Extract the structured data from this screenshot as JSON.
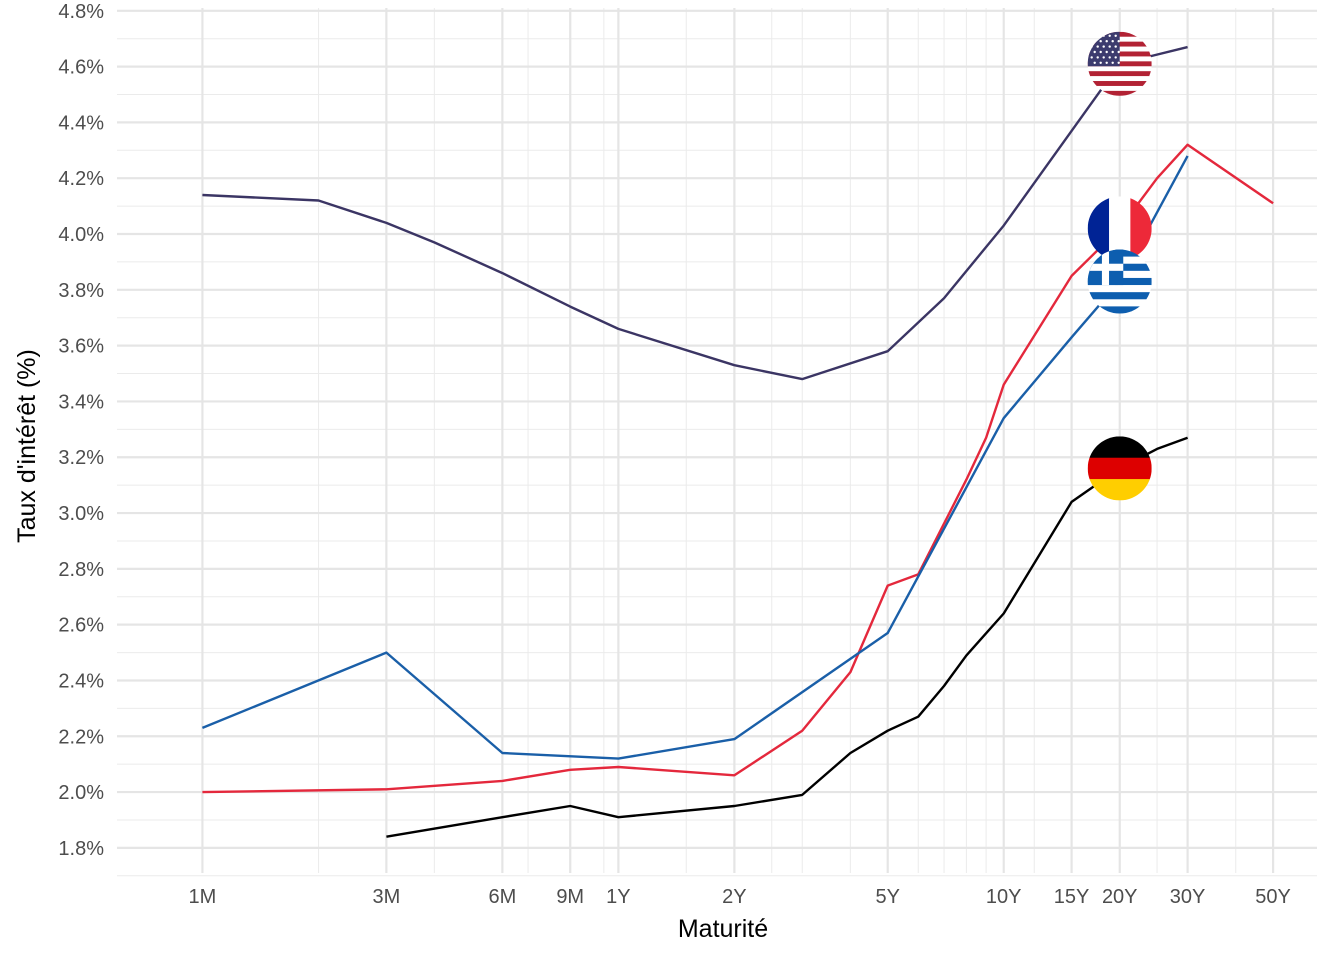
{
  "chart_data": {
    "type": "line",
    "xlabel": "Maturité",
    "ylabel": "Taux d'intérêt (%)",
    "x_scale": "log",
    "x_unit": "years",
    "xlim": [
      0.05,
      65
    ],
    "ylim": [
      1.71,
      4.81
    ],
    "x_ticks": [
      {
        "value": 0.0833,
        "label": "1M"
      },
      {
        "value": 0.25,
        "label": "3M"
      },
      {
        "value": 0.5,
        "label": "6M"
      },
      {
        "value": 0.75,
        "label": "9M"
      },
      {
        "value": 1,
        "label": "1Y"
      },
      {
        "value": 2,
        "label": "2Y"
      },
      {
        "value": 5,
        "label": "5Y"
      },
      {
        "value": 10,
        "label": "10Y"
      },
      {
        "value": 15,
        "label": "15Y"
      },
      {
        "value": 20,
        "label": "20Y"
      },
      {
        "value": 30,
        "label": "30Y"
      },
      {
        "value": 50,
        "label": "50Y"
      }
    ],
    "y_ticks": [
      {
        "value": 1.8,
        "label": "1.8%"
      },
      {
        "value": 2.0,
        "label": "2.0%"
      },
      {
        "value": 2.2,
        "label": "2.2%"
      },
      {
        "value": 2.4,
        "label": "2.4%"
      },
      {
        "value": 2.6,
        "label": "2.6%"
      },
      {
        "value": 2.8,
        "label": "2.8%"
      },
      {
        "value": 3.0,
        "label": "3.0%"
      },
      {
        "value": 3.2,
        "label": "3.2%"
      },
      {
        "value": 3.4,
        "label": "3.4%"
      },
      {
        "value": 3.6,
        "label": "3.6%"
      },
      {
        "value": 3.8,
        "label": "3.8%"
      },
      {
        "value": 4.0,
        "label": "4.0%"
      },
      {
        "value": 4.2,
        "label": "4.2%"
      },
      {
        "value": 4.4,
        "label": "4.4%"
      },
      {
        "value": 4.6,
        "label": "4.6%"
      },
      {
        "value": 4.8,
        "label": "4.8%"
      }
    ],
    "major_grid_x": [
      0.0833,
      0.25,
      0.5,
      0.75,
      1,
      2,
      5,
      10,
      15,
      20,
      30,
      50
    ],
    "minor_grid_x": [
      0.1667,
      0.333,
      0.583,
      0.917,
      1.5,
      2.5,
      3,
      4,
      6,
      7,
      8,
      9,
      12,
      25,
      40
    ],
    "minor_grid_y": [
      1.7,
      1.9,
      2.1,
      2.3,
      2.5,
      2.7,
      2.9,
      3.1,
      3.3,
      3.5,
      3.7,
      3.9,
      4.1,
      4.3,
      4.5,
      4.7
    ],
    "grid": true,
    "legend": "none (flag markers at the 20Y point)",
    "flag_at_x": 20,
    "series": [
      {
        "flag": "united-states",
        "color": "#3b3564",
        "points": [
          [
            0.0833,
            4.14
          ],
          [
            0.1667,
            4.12
          ],
          [
            0.25,
            4.04
          ],
          [
            0.333,
            3.97
          ],
          [
            0.5,
            3.86
          ],
          [
            0.75,
            3.74
          ],
          [
            1,
            3.66
          ],
          [
            2,
            3.53
          ],
          [
            3,
            3.48
          ],
          [
            5,
            3.58
          ],
          [
            7,
            3.77
          ],
          [
            10,
            4.03
          ],
          [
            20,
            4.61
          ],
          [
            30,
            4.67
          ]
        ]
      },
      {
        "flag": "france",
        "color": "#e4283c",
        "points": [
          [
            0.0833,
            2.0
          ],
          [
            0.25,
            2.01
          ],
          [
            0.5,
            2.04
          ],
          [
            0.75,
            2.08
          ],
          [
            1,
            2.09
          ],
          [
            2,
            2.06
          ],
          [
            3,
            2.22
          ],
          [
            4,
            2.43
          ],
          [
            5,
            2.74
          ],
          [
            6,
            2.78
          ],
          [
            8,
            3.12
          ],
          [
            9,
            3.27
          ],
          [
            10,
            3.46
          ],
          [
            15,
            3.85
          ],
          [
            20,
            4.02
          ],
          [
            25,
            4.2
          ],
          [
            30,
            4.32
          ],
          [
            50,
            4.11
          ]
        ]
      },
      {
        "flag": "greece",
        "color": "#1a5fa8",
        "points": [
          [
            0.0833,
            2.23
          ],
          [
            0.25,
            2.5
          ],
          [
            0.5,
            2.14
          ],
          [
            1,
            2.12
          ],
          [
            2,
            2.19
          ],
          [
            5,
            2.57
          ],
          [
            10,
            3.34
          ],
          [
            15,
            3.63
          ],
          [
            20,
            3.83
          ],
          [
            30,
            4.28
          ]
        ]
      },
      {
        "flag": "germany",
        "color": "#000000",
        "points": [
          [
            0.25,
            1.84
          ],
          [
            0.5,
            1.91
          ],
          [
            0.75,
            1.95
          ],
          [
            1,
            1.91
          ],
          [
            2,
            1.95
          ],
          [
            3,
            1.99
          ],
          [
            4,
            2.14
          ],
          [
            5,
            2.22
          ],
          [
            6,
            2.27
          ],
          [
            7,
            2.38
          ],
          [
            8,
            2.49
          ],
          [
            10,
            2.64
          ],
          [
            15,
            3.04
          ],
          [
            20,
            3.16
          ],
          [
            25,
            3.23
          ],
          [
            30,
            3.27
          ]
        ]
      }
    ]
  }
}
